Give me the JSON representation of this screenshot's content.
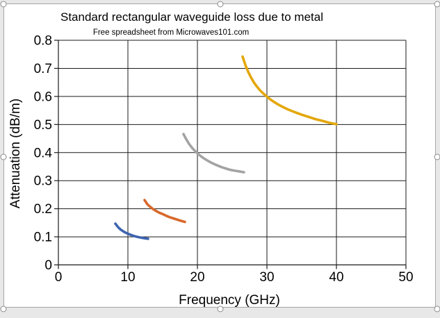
{
  "chart": {
    "title": "Standard rectangular waveguide loss due to metal",
    "subtitle": "Free spreadsheet from Microwaves101.com",
    "xlabel": "Frequency (GHz)",
    "ylabel": "Attenuation (dB/m)"
  },
  "chart_data": {
    "type": "line",
    "title": "Standard rectangular waveguide loss due to metal",
    "subtitle": "Free spreadsheet from Microwaves101.com",
    "xlabel": "Frequency (GHz)",
    "ylabel": "Attenuation (dB/m)",
    "xlim": [
      0,
      50
    ],
    "ylim": [
      0,
      0.8
    ],
    "x_ticks": [
      0,
      10,
      20,
      30,
      40,
      50
    ],
    "x_tick_labels": [
      "0",
      "10",
      "20",
      "30",
      "40",
      "50"
    ],
    "y_ticks": [
      0,
      0.1,
      0.2,
      0.3,
      0.4,
      0.5,
      0.6,
      0.7,
      0.8
    ],
    "y_tick_labels": [
      "0",
      "0.1",
      "0.2",
      "0.3",
      "0.4",
      "0.5",
      "0.6",
      "0.7",
      "0.8"
    ],
    "grid": true,
    "legend": "none",
    "axis_color": "#1a1a1a",
    "series": [
      {
        "name": "series-1-blue",
        "color": "#3e64b0",
        "points": [
          [
            8.2,
            0.147
          ],
          [
            8.6,
            0.134
          ],
          [
            9.0,
            0.125
          ],
          [
            9.5,
            0.117
          ],
          [
            10.0,
            0.111
          ],
          [
            10.5,
            0.106
          ],
          [
            11.0,
            0.102
          ],
          [
            11.5,
            0.099
          ],
          [
            12.0,
            0.0965
          ],
          [
            12.5,
            0.0945
          ],
          [
            12.9,
            0.093
          ]
        ]
      },
      {
        "name": "series-2-orange",
        "color": "#d8682b",
        "points": [
          [
            12.4,
            0.231
          ],
          [
            12.8,
            0.216
          ],
          [
            13.2,
            0.207
          ],
          [
            13.6,
            0.199
          ],
          [
            14.0,
            0.193
          ],
          [
            14.5,
            0.186
          ],
          [
            15.0,
            0.181
          ],
          [
            15.5,
            0.175
          ],
          [
            16.0,
            0.17
          ],
          [
            16.5,
            0.166
          ],
          [
            17.0,
            0.162
          ],
          [
            17.5,
            0.158
          ],
          [
            18.2,
            0.153
          ]
        ]
      },
      {
        "name": "series-3-gray",
        "color": "#a3a3a3",
        "points": [
          [
            18.0,
            0.466
          ],
          [
            18.4,
            0.447
          ],
          [
            18.8,
            0.431
          ],
          [
            19.2,
            0.418
          ],
          [
            19.6,
            0.407
          ],
          [
            20.0,
            0.397
          ],
          [
            20.5,
            0.387
          ],
          [
            21.0,
            0.378
          ],
          [
            21.5,
            0.371
          ],
          [
            22.0,
            0.364
          ],
          [
            22.5,
            0.358
          ],
          [
            23.0,
            0.353
          ],
          [
            23.5,
            0.348
          ],
          [
            24.0,
            0.344
          ],
          [
            24.5,
            0.34
          ],
          [
            25.0,
            0.337
          ],
          [
            25.5,
            0.335
          ],
          [
            26.0,
            0.333
          ],
          [
            26.7,
            0.33
          ]
        ]
      },
      {
        "name": "series-4-gold",
        "color": "#e4a70a",
        "points": [
          [
            26.5,
            0.742
          ],
          [
            26.9,
            0.712
          ],
          [
            27.3,
            0.688
          ],
          [
            27.7,
            0.668
          ],
          [
            28.1,
            0.651
          ],
          [
            28.5,
            0.637
          ],
          [
            29.0,
            0.622
          ],
          [
            29.5,
            0.61
          ],
          [
            30.0,
            0.599
          ],
          [
            30.5,
            0.589
          ],
          [
            31.0,
            0.581
          ],
          [
            31.5,
            0.573
          ],
          [
            32.0,
            0.566
          ],
          [
            33.0,
            0.554
          ],
          [
            34.0,
            0.544
          ],
          [
            35.0,
            0.535
          ],
          [
            36.0,
            0.527
          ],
          [
            37.0,
            0.519
          ],
          [
            38.0,
            0.513
          ],
          [
            39.0,
            0.506
          ],
          [
            40.0,
            0.501
          ]
        ]
      }
    ]
  }
}
